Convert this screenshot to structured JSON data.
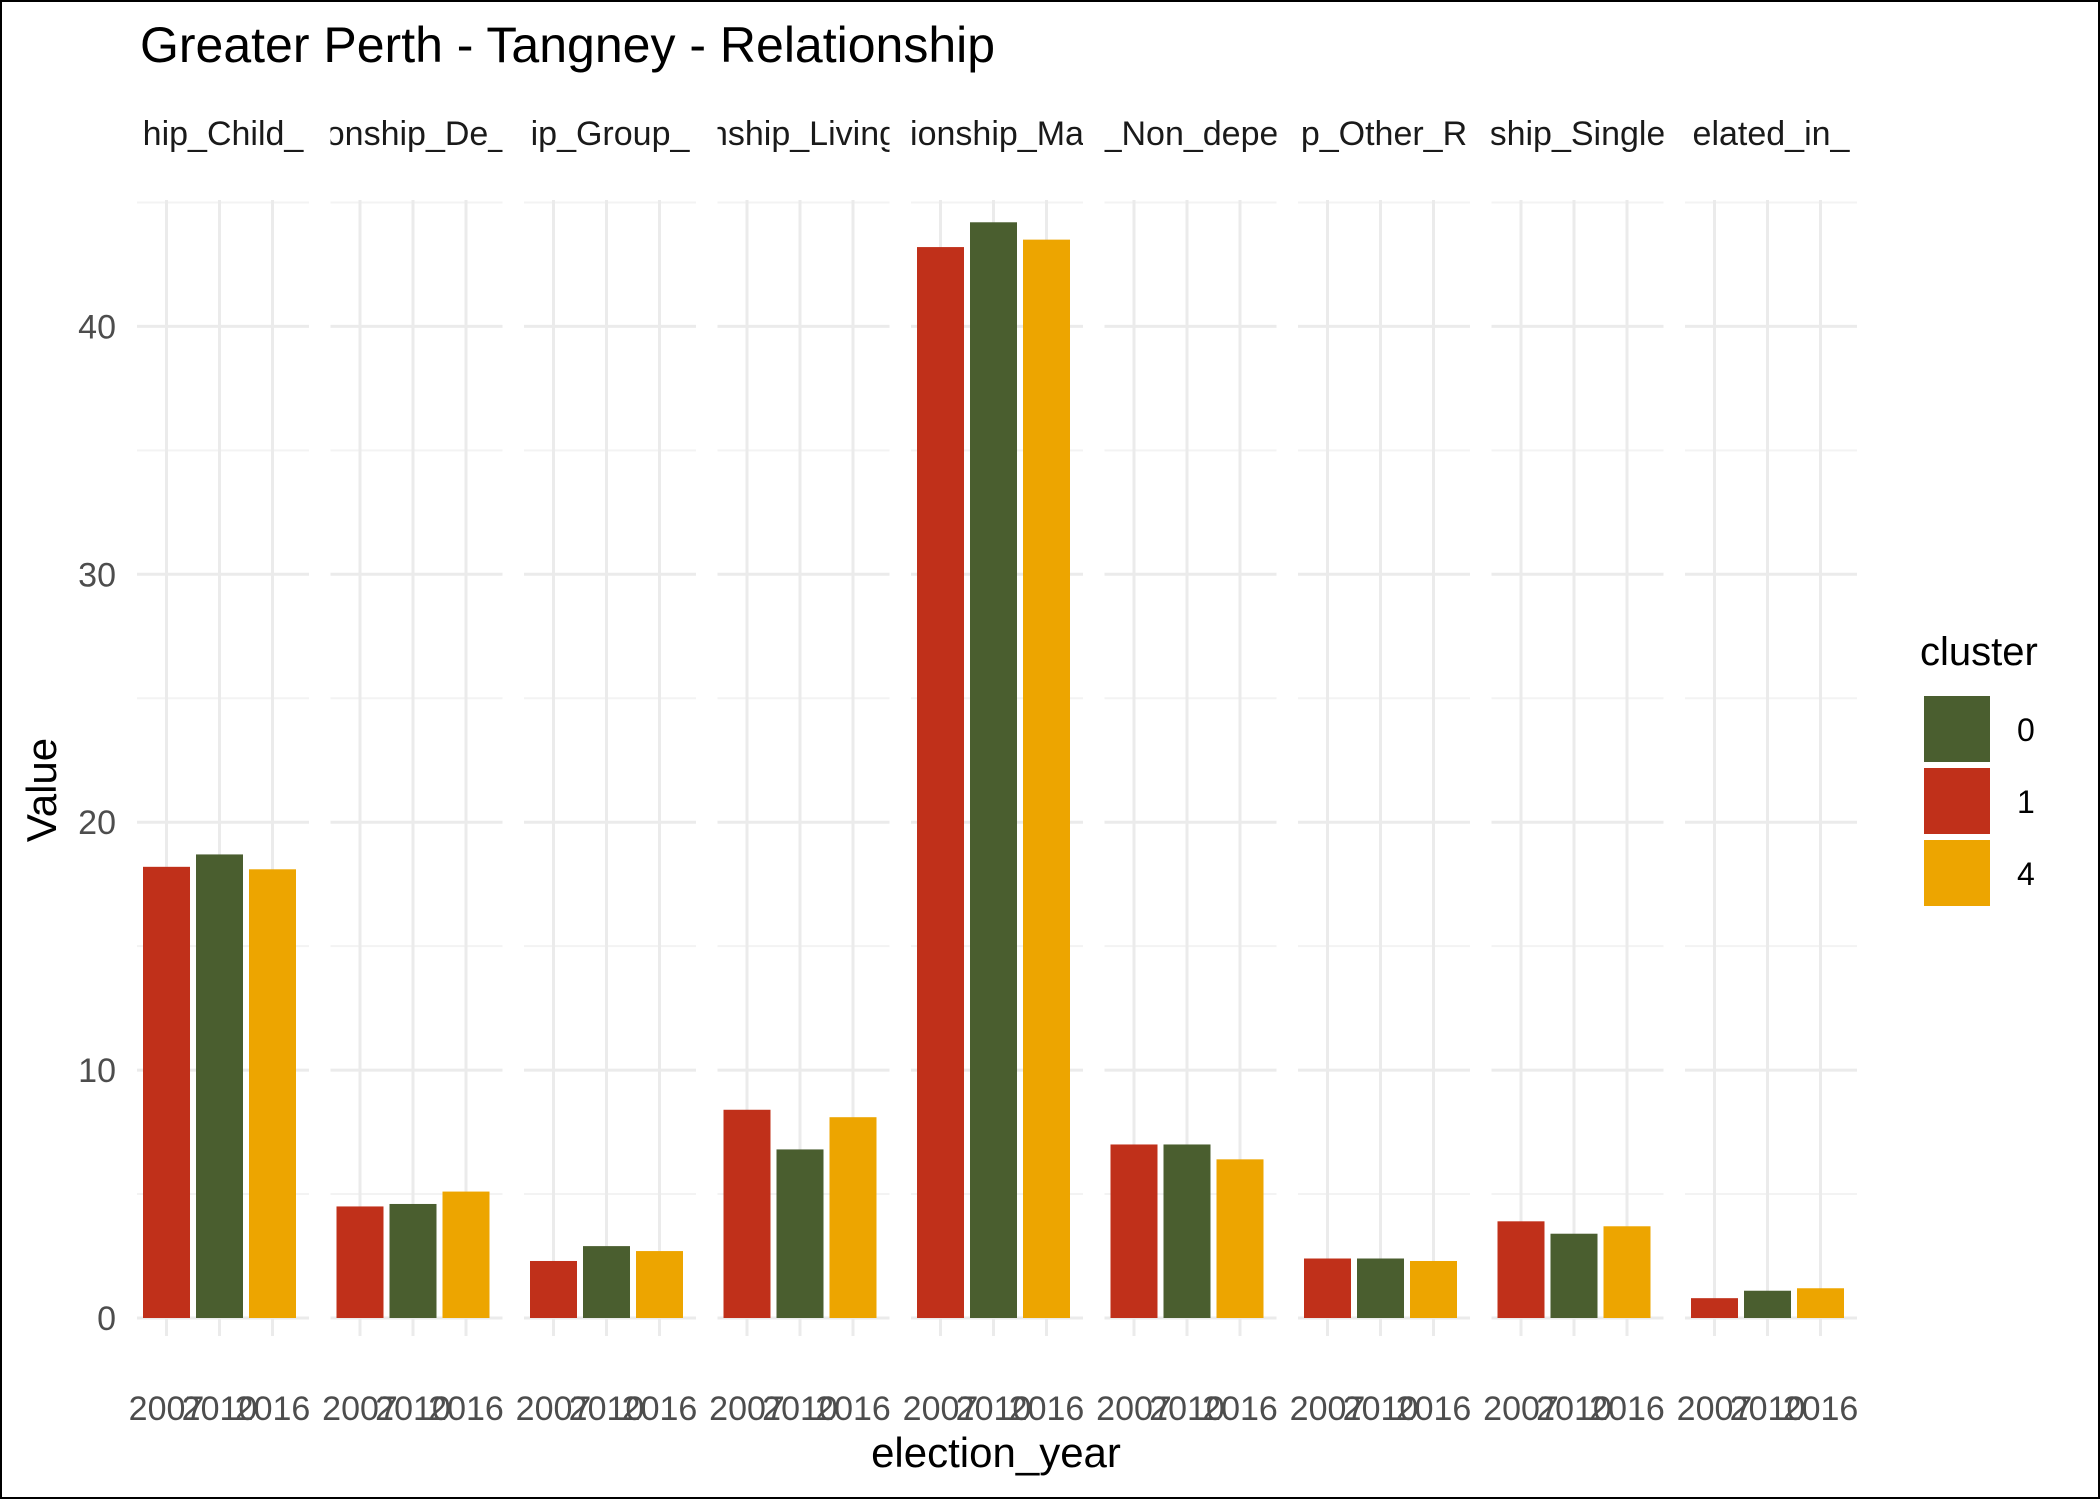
{
  "chart_data": {
    "type": "bar",
    "title": "Greater Perth - Tangney - Relationship",
    "xlabel": "election_year",
    "ylabel": "Value",
    "ylim": [
      0,
      45
    ],
    "y_ticks": [
      "0",
      "10",
      "20",
      "30",
      "40"
    ],
    "x_tick_labels": [
      "2007",
      "2010",
      "2016"
    ],
    "legend": {
      "title": "cluster",
      "placement": "right",
      "entries": [
        {
          "label": "0",
          "color": "#4a5e2f"
        },
        {
          "label": "1",
          "color": "#c0301a"
        },
        {
          "label": "4",
          "color": "#eda500"
        }
      ]
    },
    "facets": [
      {
        "strip": "hip_Child_",
        "bars": [
          {
            "year": "2007",
            "cluster": "1",
            "value": 18.2
          },
          {
            "year": "2010",
            "cluster": "0",
            "value": 18.7
          },
          {
            "year": "2016",
            "cluster": "4",
            "value": 18.1
          }
        ]
      },
      {
        "strip": "onship_De_",
        "bars": [
          {
            "year": "2007",
            "cluster": "1",
            "value": 4.5
          },
          {
            "year": "2010",
            "cluster": "0",
            "value": 4.6
          },
          {
            "year": "2016",
            "cluster": "4",
            "value": 5.1
          }
        ]
      },
      {
        "strip": "ip_Group_",
        "bars": [
          {
            "year": "2007",
            "cluster": "1",
            "value": 2.3
          },
          {
            "year": "2010",
            "cluster": "0",
            "value": 2.9
          },
          {
            "year": "2016",
            "cluster": "4",
            "value": 2.7
          }
        ]
      },
      {
        "strip": "nship_Living",
        "bars": [
          {
            "year": "2007",
            "cluster": "1",
            "value": 8.4
          },
          {
            "year": "2010",
            "cluster": "0",
            "value": 6.8
          },
          {
            "year": "2016",
            "cluster": "4",
            "value": 8.1
          }
        ]
      },
      {
        "strip": "ionship_Ma",
        "bars": [
          {
            "year": "2007",
            "cluster": "1",
            "value": 43.2
          },
          {
            "year": "2010",
            "cluster": "0",
            "value": 44.2
          },
          {
            "year": "2016",
            "cluster": "4",
            "value": 43.5
          }
        ]
      },
      {
        "strip": "_Non_depe",
        "bars": [
          {
            "year": "2007",
            "cluster": "1",
            "value": 7.0
          },
          {
            "year": "2010",
            "cluster": "0",
            "value": 7.0
          },
          {
            "year": "2016",
            "cluster": "4",
            "value": 6.4
          }
        ]
      },
      {
        "strip": "p_Other_R",
        "bars": [
          {
            "year": "2007",
            "cluster": "1",
            "value": 2.4
          },
          {
            "year": "2010",
            "cluster": "0",
            "value": 2.4
          },
          {
            "year": "2016",
            "cluster": "4",
            "value": 2.3
          }
        ]
      },
      {
        "strip": "ship_Single",
        "bars": [
          {
            "year": "2007",
            "cluster": "1",
            "value": 3.9
          },
          {
            "year": "2010",
            "cluster": "0",
            "value": 3.4
          },
          {
            "year": "2016",
            "cluster": "4",
            "value": 3.7
          }
        ]
      },
      {
        "strip": "elated_in_",
        "bars": [
          {
            "year": "2007",
            "cluster": "1",
            "value": 0.8
          },
          {
            "year": "2010",
            "cluster": "0",
            "value": 1.1
          },
          {
            "year": "2016",
            "cluster": "4",
            "value": 1.2
          }
        ]
      }
    ]
  }
}
